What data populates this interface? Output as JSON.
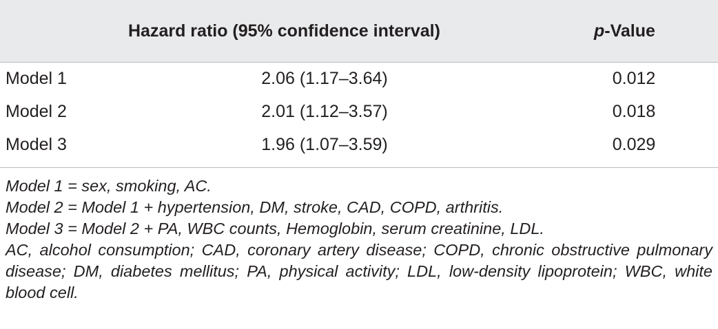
{
  "table": {
    "header": {
      "hazard_ratio": "Hazard ratio (95% confidence interval)",
      "p_value_italic": "p",
      "p_value_rest": "-Value"
    },
    "rows": [
      {
        "model": "Model 1",
        "hr": "2.06 (1.17–3.64)",
        "p": "0.012"
      },
      {
        "model": "Model 2",
        "hr": "2.01 (1.12–3.57)",
        "p": "0.018"
      },
      {
        "model": "Model 3",
        "hr": "1.96 (1.07–3.59)",
        "p": "0.029"
      }
    ]
  },
  "notes": [
    "Model 1 = sex, smoking, AC.",
    "Model 2 = Model 1 + hypertension, DM, stroke, CAD, COPD, arthritis.",
    "Model 3 = Model 2 + PA, WBC counts, Hemoglobin, serum creatinine, LDL.",
    "AC, alcohol consumption; CAD, coronary artery disease; COPD, chronic obstructive pulmonary disease; DM, diabetes mellitus; PA, physical activity; LDL, low-density lipoprotein; WBC, white blood cell."
  ]
}
